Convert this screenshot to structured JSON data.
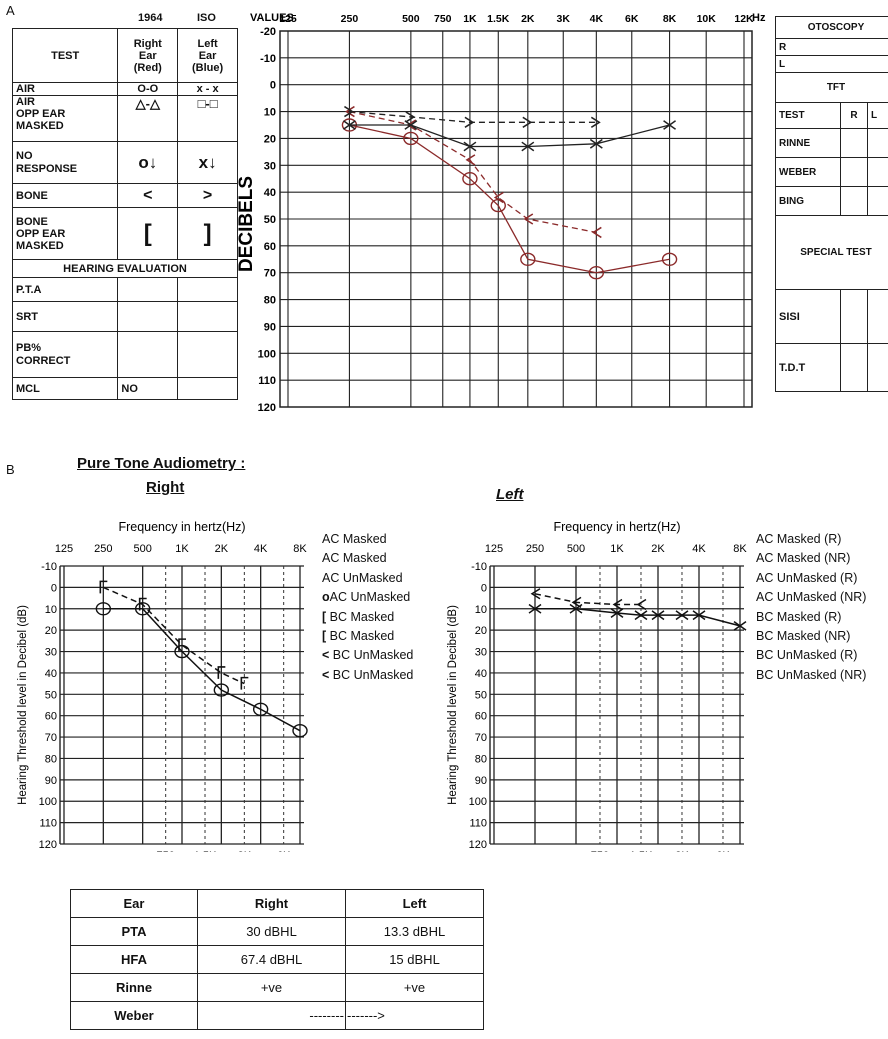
{
  "panelA": {
    "label": "A",
    "symbols": {
      "header": {
        "year": "1964",
        "iso": "ISO",
        "test": "TEST",
        "right": [
          "Right",
          "Ear",
          "(Red)"
        ],
        "left": [
          "Left",
          "Ear",
          "(Blue)"
        ]
      },
      "rows": [
        {
          "label": "AIR",
          "right": "O-O",
          "left": "x - x"
        },
        {
          "label": [
            "AIR",
            "OPP EAR",
            "MASKED"
          ],
          "right": "△-△",
          "left": "□-□"
        },
        {
          "label": [
            "NO",
            "RESPONSE"
          ],
          "right": "o↓",
          "left": "x↓"
        },
        {
          "label": "BONE",
          "right": "<",
          "left": ">"
        },
        {
          "label": [
            "BONE",
            "OPP EAR",
            "MASKED"
          ],
          "right": "[",
          "left": "]"
        }
      ],
      "evaluation_title": "HEARING EVALUATION",
      "eval_rows": [
        {
          "label": "P.T.A",
          "right": "",
          "left": ""
        },
        {
          "label": "SRT",
          "right": "",
          "left": ""
        },
        {
          "label": [
            "PB%",
            "CORRECT"
          ],
          "right": "",
          "left": ""
        },
        {
          "label": "MCL",
          "right": "NO",
          "left": ""
        }
      ]
    },
    "audiogram": {
      "values_label": "VALUES",
      "hz_label": "Hz.",
      "ylabel": "DECIBELS"
    },
    "right_panel": {
      "otoscopy": "OTOSCOPY",
      "otoscopy_rows": [
        "R",
        "L"
      ],
      "tft": "TFT",
      "test_header": [
        "TEST",
        "R",
        "L"
      ],
      "tests": [
        "RINNE",
        "WEBER",
        "BING"
      ],
      "special": "SPECIAL TEST",
      "special_rows": [
        "SISI",
        "T.D.T"
      ]
    }
  },
  "panelB": {
    "label": "B",
    "title": "Pure Tone Audiometry :",
    "right_title": "Right",
    "left_title": "Left",
    "xlabel": "Frequency in hertz(Hz)",
    "ylabel": "Hearing Threshold level in Decibel (dB)",
    "right_legend": [
      "AC Masked",
      "AC Masked",
      "AC UnMasked",
      "AC UnMasked",
      "BC Masked",
      "BC Masked",
      "BC UnMasked",
      "BC UnMasked"
    ],
    "right_legend_marks": [
      "",
      "",
      "",
      "o",
      "[",
      "[",
      "<",
      "<"
    ],
    "left_legend": [
      "AC Masked (R)",
      "AC Masked (NR)",
      "AC UnMasked (R)",
      "AC UnMasked (NR)",
      "BC Masked (R)",
      "BC Masked (NR)",
      "BC UnMasked (R)",
      "BC UnMasked (NR)"
    ]
  },
  "summary": {
    "headers": [
      "Ear",
      "Right",
      "Left"
    ],
    "rows": [
      {
        "label": "PTA",
        "right": "30 dBHL",
        "left": "13.3 dBHL"
      },
      {
        "label": "HFA",
        "right": "67.4 dBHL",
        "left": "15 dBHL"
      },
      {
        "label": "Rinne",
        "right": "+ve",
        "left": "+ve"
      },
      {
        "label": "Weber",
        "right": "--------",
        "left": "------->"
      }
    ]
  },
  "chart_data": [
    {
      "type": "line",
      "name_hint": "panelA-audiogram",
      "x_ticks": [
        "125",
        "250",
        "500",
        "750",
        "1K",
        "1.5K",
        "2K",
        "3K",
        "4K",
        "6K",
        "8K",
        "10K",
        "12K"
      ],
      "y_ticks": [
        -20,
        -10,
        0,
        10,
        20,
        30,
        40,
        50,
        60,
        70,
        80,
        90,
        100,
        110,
        120
      ],
      "ylim": [
        -20,
        120
      ],
      "y_inverted": true,
      "series": [
        {
          "color": "#8b2a2a",
          "marker": "circle",
          "dash": false,
          "x": [
            "250",
            "500",
            "1K",
            "1.5K",
            "2K",
            "4K",
            "8K"
          ],
          "values": [
            15,
            20,
            35,
            45,
            65,
            70,
            65
          ]
        },
        {
          "color": "#8b2a2a",
          "marker": "lt",
          "dash": true,
          "x": [
            "250",
            "500",
            "1K",
            "1.5K",
            "2K",
            "4K"
          ],
          "values": [
            10,
            15,
            28,
            42,
            50,
            55
          ]
        },
        {
          "color": "#222222",
          "marker": "x",
          "dash": false,
          "x": [
            "250",
            "500",
            "1K",
            "2K",
            "4K",
            "8K"
          ],
          "values": [
            15,
            15,
            23,
            23,
            22,
            15
          ]
        },
        {
          "color": "#222222",
          "marker": "gt",
          "dash": true,
          "x": [
            "250",
            "500",
            "1K",
            "2K",
            "4K"
          ],
          "values": [
            10,
            12,
            14,
            14,
            14
          ]
        }
      ]
    },
    {
      "type": "line",
      "name_hint": "panelB-right",
      "x_ticks_top": [
        "125",
        "250",
        "500",
        "1K",
        "2K",
        "4K",
        "8K"
      ],
      "x_ticks_bottom": [
        "750",
        "1.5K",
        "3K",
        "6K"
      ],
      "y_ticks": [
        -10,
        0,
        10,
        20,
        30,
        40,
        50,
        60,
        70,
        80,
        90,
        100,
        110,
        120
      ],
      "ylim": [
        -10,
        120
      ],
      "y_inverted": true,
      "series": [
        {
          "color": "#111111",
          "marker": "circle",
          "dash": false,
          "x": [
            "250",
            "500",
            "1K",
            "2K",
            "4K",
            "8K"
          ],
          "values": [
            10,
            10,
            30,
            48,
            57,
            67
          ]
        },
        {
          "color": "#111111",
          "marker": "bracket",
          "dash": true,
          "x": [
            "250",
            "500",
            "1K",
            "2K",
            "3K"
          ],
          "values": [
            0,
            8,
            27,
            40,
            45
          ]
        }
      ]
    },
    {
      "type": "line",
      "name_hint": "panelB-left",
      "x_ticks_top": [
        "125",
        "250",
        "500",
        "1K",
        "2K",
        "4K",
        "8K"
      ],
      "x_ticks_bottom": [
        "750",
        "1.5K",
        "3K",
        "6K"
      ],
      "y_ticks": [
        -10,
        0,
        10,
        20,
        30,
        40,
        50,
        60,
        70,
        80,
        90,
        100,
        110,
        120
      ],
      "ylim": [
        -10,
        120
      ],
      "y_inverted": true,
      "series": [
        {
          "color": "#111111",
          "marker": "x",
          "dash": false,
          "x": [
            "250",
            "500",
            "1K",
            "1.5K",
            "2K",
            "3K",
            "4K",
            "8K"
          ],
          "values": [
            10,
            10,
            12,
            13,
            13,
            13,
            13,
            18
          ]
        },
        {
          "color": "#111111",
          "marker": "lt",
          "dash": true,
          "x": [
            "250",
            "500",
            "1K",
            "1.5K"
          ],
          "values": [
            3,
            7,
            8,
            8
          ]
        }
      ]
    }
  ]
}
